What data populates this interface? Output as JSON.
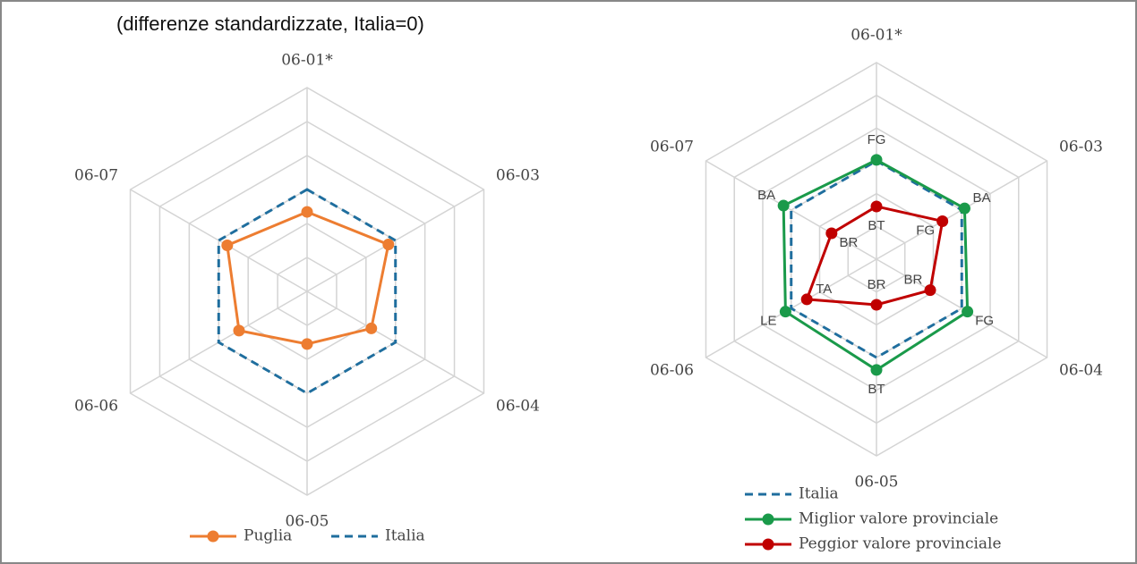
{
  "chart_data": [
    {
      "type": "radar",
      "title": "(differenze standardizzate, Italia=0)",
      "categories": [
        "06-01*",
        "06-03",
        "06-04",
        "06-05",
        "06-06",
        "06-07"
      ],
      "ylim": [
        -3,
        3
      ],
      "yticks": [
        -2,
        -1,
        0,
        1,
        2,
        3
      ],
      "grid": true,
      "series": [
        {
          "name": "Puglia",
          "color": "#ed7d31",
          "dashed": false,
          "markers": true,
          "values": [
            -0.66,
            -0.24,
            -0.82,
            -1.45,
            -0.69,
            -0.29
          ]
        },
        {
          "name": "Italia",
          "color": "#1f6e9e",
          "dashed": true,
          "markers": false,
          "values": [
            0,
            0,
            0,
            0,
            0,
            0
          ]
        }
      ]
    },
    {
      "type": "radar",
      "categories": [
        "06-01*",
        "06-03",
        "06-04",
        "06-05",
        "06-06",
        "06-07"
      ],
      "ylim": [
        -3,
        3
      ],
      "yticks": [
        -2,
        -1,
        0,
        1,
        2,
        3
      ],
      "grid": true,
      "series": [
        {
          "name": "Italia",
          "color": "#1f6e9e",
          "dashed": true,
          "markers": false,
          "values": [
            0,
            0,
            0,
            0,
            0,
            0
          ]
        },
        {
          "name": "Miglior valore provinciale",
          "color": "#1a9a4a",
          "dashed": false,
          "markers": true,
          "values": [
            0.03,
            0.1,
            0.2,
            0.38,
            0.2,
            0.27
          ],
          "point_labels": [
            "FG",
            "BA",
            "FG",
            "BT",
            "LE",
            "BA"
          ]
        },
        {
          "name": "Peggior valore provinciale",
          "color": "#c00000",
          "dashed": false,
          "markers": true,
          "values": [
            -1.39,
            -0.68,
            -1.11,
            -1.61,
            -0.55,
            -1.42
          ],
          "point_labels": [
            "BT",
            "FG",
            "BR",
            "BR",
            "TA",
            "BR"
          ]
        }
      ]
    }
  ]
}
